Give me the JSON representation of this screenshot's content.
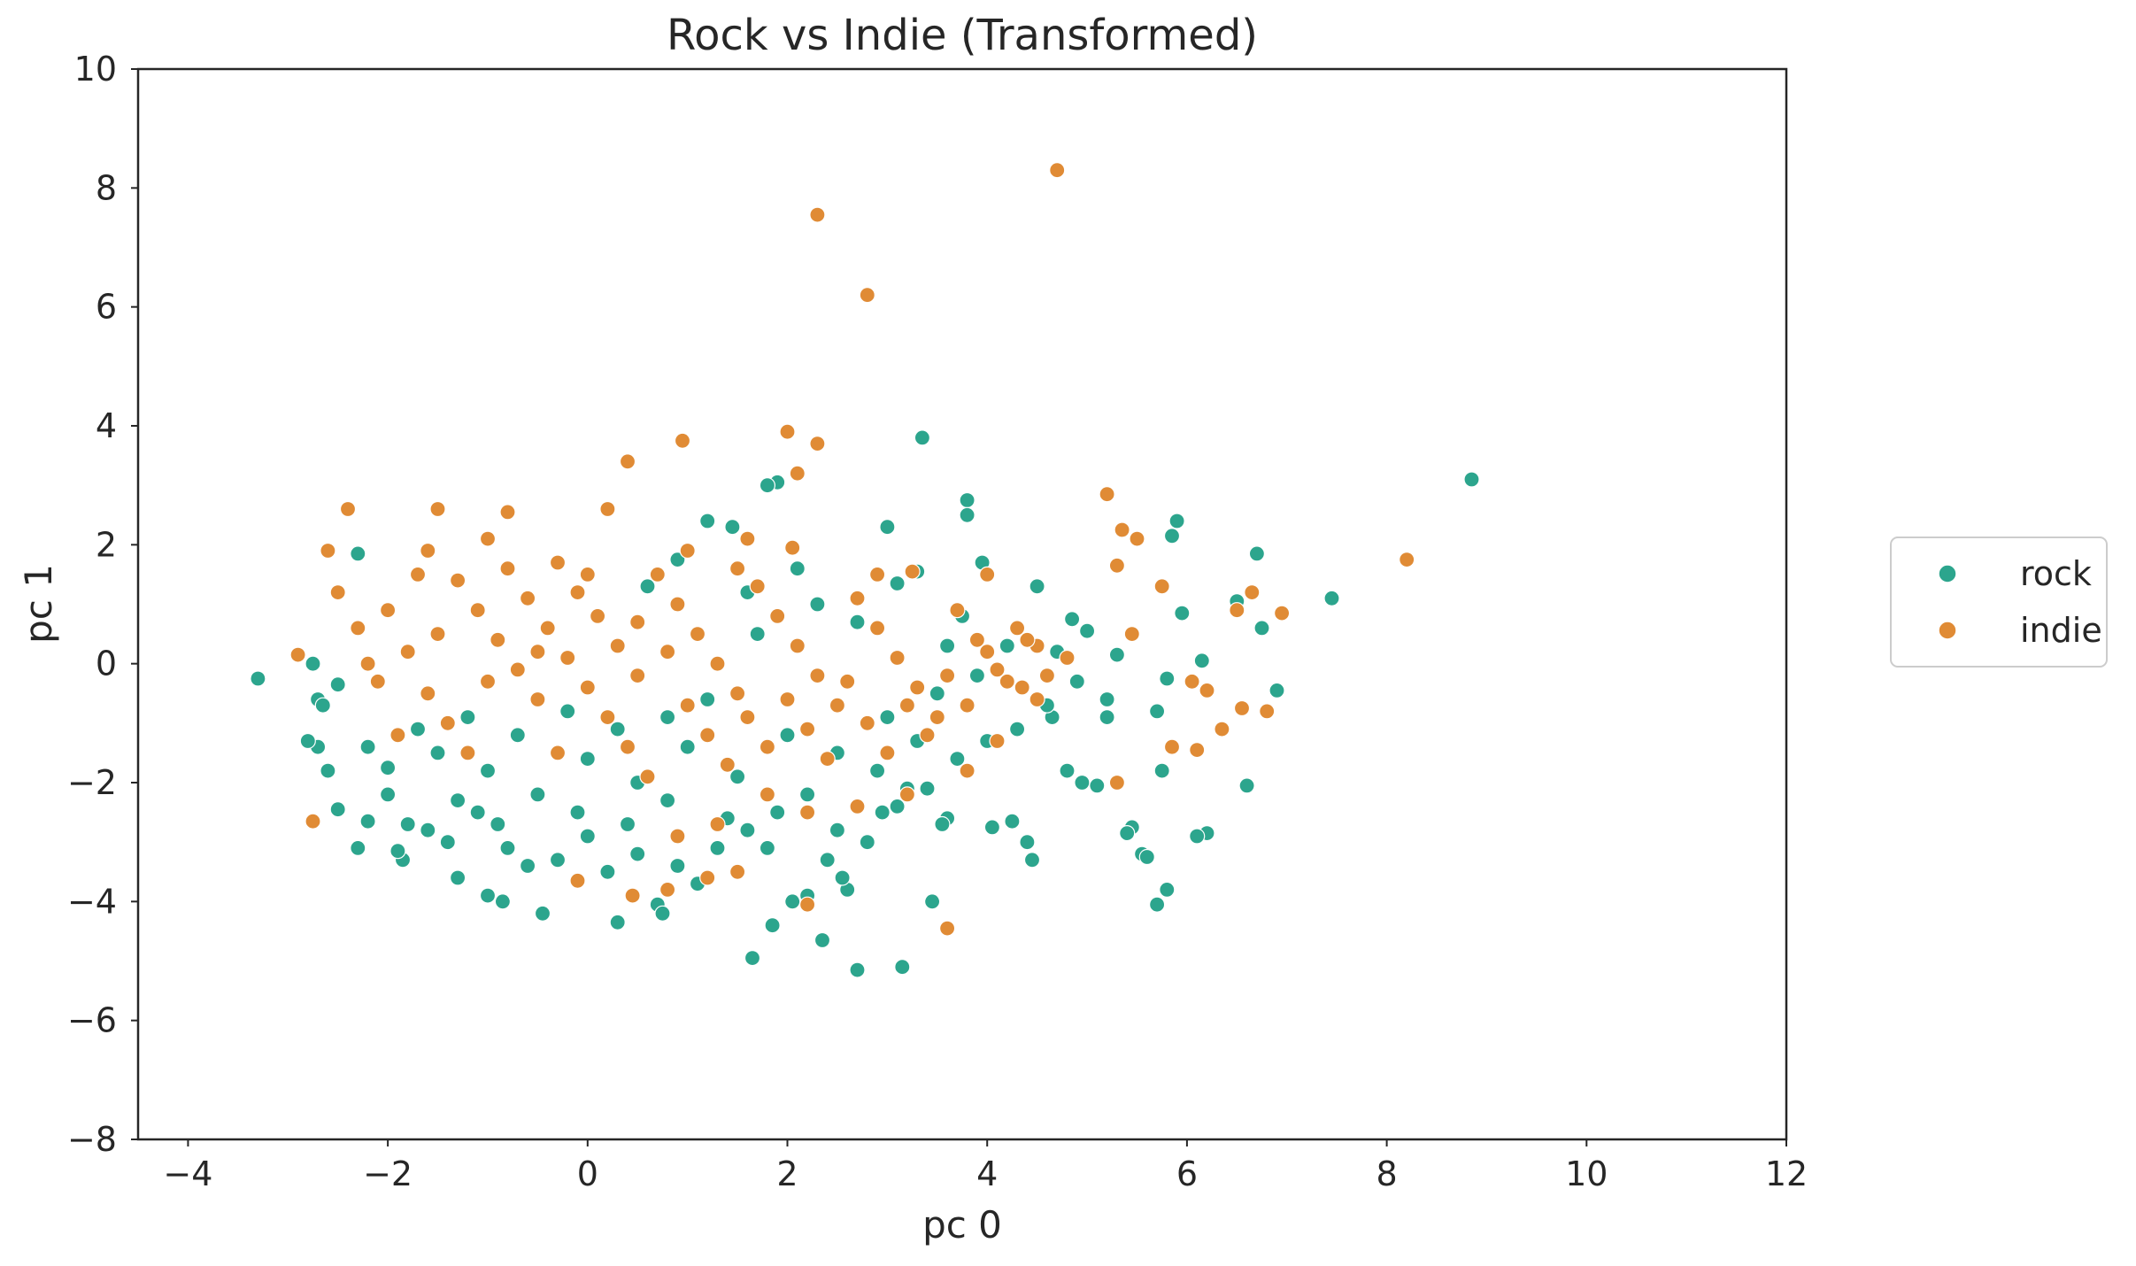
{
  "chart_data": {
    "type": "scatter",
    "title": "Rock vs Indie (Transformed)",
    "xlabel": "pc 0",
    "ylabel": "pc 1",
    "xlim": [
      -4.5,
      12
    ],
    "ylim": [
      -8,
      10
    ],
    "xticks": [
      -4,
      -2,
      0,
      2,
      4,
      6,
      8,
      10,
      12
    ],
    "yticks": [
      -8,
      -6,
      -4,
      -2,
      0,
      2,
      4,
      6,
      8,
      10
    ],
    "xtick_labels": [
      "−4",
      "−2",
      "0",
      "2",
      "4",
      "6",
      "8",
      "10",
      "12"
    ],
    "ytick_labels": [
      "−8",
      "−6",
      "−4",
      "−2",
      "0",
      "2",
      "4",
      "6",
      "8",
      "10"
    ],
    "grid": false,
    "legend": {
      "placement": "right",
      "entries": [
        "rock",
        "indie"
      ]
    },
    "series": [
      {
        "name": "rock",
        "color": "#2ca58d",
        "points": [
          [
            -3.3,
            -0.25
          ],
          [
            8.85,
            3.1
          ],
          [
            7.45,
            1.1
          ],
          [
            6.9,
            -0.45
          ],
          [
            6.75,
            0.6
          ],
          [
            6.7,
            1.85
          ],
          [
            6.5,
            1.05
          ],
          [
            6.6,
            -2.05
          ],
          [
            6.2,
            -2.85
          ],
          [
            6.1,
            -2.9
          ],
          [
            6.15,
            0.05
          ],
          [
            5.95,
            0.85
          ],
          [
            5.9,
            2.4
          ],
          [
            5.85,
            2.15
          ],
          [
            5.8,
            -0.25
          ],
          [
            5.7,
            -0.8
          ],
          [
            5.75,
            -1.8
          ],
          [
            5.7,
            -4.05
          ],
          [
            5.8,
            -3.8
          ],
          [
            5.55,
            -3.2
          ],
          [
            5.6,
            -3.25
          ],
          [
            5.45,
            -2.75
          ],
          [
            5.4,
            -2.85
          ],
          [
            5.2,
            -0.6
          ],
          [
            5.3,
            0.15
          ],
          [
            5.0,
            0.55
          ],
          [
            5.1,
            -2.05
          ],
          [
            4.95,
            -2.0
          ],
          [
            4.8,
            -1.8
          ],
          [
            4.85,
            0.75
          ],
          [
            4.65,
            -0.9
          ],
          [
            4.5,
            1.3
          ],
          [
            4.45,
            -3.3
          ],
          [
            4.4,
            -3.0
          ],
          [
            4.25,
            -2.65
          ],
          [
            4.05,
            -2.75
          ],
          [
            3.95,
            1.7
          ],
          [
            3.8,
            2.75
          ],
          [
            3.8,
            2.5
          ],
          [
            3.75,
            0.8
          ],
          [
            3.6,
            -2.6
          ],
          [
            3.55,
            -2.7
          ],
          [
            3.45,
            -4.0
          ],
          [
            3.35,
            3.8
          ],
          [
            3.3,
            1.55
          ],
          [
            3.1,
            1.35
          ],
          [
            3.0,
            2.3
          ],
          [
            3.2,
            -2.1
          ],
          [
            2.95,
            -2.5
          ],
          [
            3.15,
            -5.1
          ],
          [
            2.7,
            -5.15
          ],
          [
            2.6,
            -3.8
          ],
          [
            2.55,
            -3.6
          ],
          [
            2.35,
            -4.65
          ],
          [
            2.2,
            -3.9
          ],
          [
            2.05,
            -4.0
          ],
          [
            1.85,
            -4.4
          ],
          [
            1.65,
            -4.95
          ],
          [
            1.9,
            3.05
          ],
          [
            1.8,
            3.0
          ],
          [
            1.45,
            2.3
          ],
          [
            1.2,
            2.4
          ],
          [
            0.9,
            1.75
          ],
          [
            0.6,
            1.3
          ],
          [
            1.1,
            -3.7
          ],
          [
            0.7,
            -4.05
          ],
          [
            0.75,
            -4.2
          ],
          [
            0.3,
            -4.35
          ],
          [
            -0.45,
            -4.2
          ],
          [
            -0.85,
            -4.0
          ],
          [
            -1.0,
            -3.9
          ],
          [
            -1.3,
            -3.6
          ],
          [
            -1.85,
            -3.3
          ],
          [
            -1.9,
            -3.15
          ],
          [
            -2.3,
            -3.1
          ],
          [
            -2.2,
            -2.65
          ],
          [
            -2.5,
            -2.45
          ],
          [
            -2.6,
            -1.8
          ],
          [
            -2.7,
            -1.4
          ],
          [
            -2.8,
            -1.3
          ],
          [
            -2.7,
            -0.6
          ],
          [
            -2.65,
            -0.7
          ],
          [
            -2.75,
            0.0
          ],
          [
            -2.5,
            -0.35
          ],
          [
            -2.3,
            1.85
          ],
          [
            -2.0,
            -1.75
          ],
          [
            -1.6,
            -2.8
          ],
          [
            -1.4,
            -3.0
          ],
          [
            -1.1,
            -2.5
          ],
          [
            -0.8,
            -3.1
          ],
          [
            -0.6,
            -3.4
          ],
          [
            -0.3,
            -3.3
          ],
          [
            0.0,
            -2.9
          ],
          [
            0.2,
            -3.5
          ],
          [
            0.5,
            -3.2
          ],
          [
            0.9,
            -3.4
          ],
          [
            1.3,
            -3.1
          ],
          [
            1.6,
            -2.8
          ],
          [
            1.9,
            -2.5
          ],
          [
            2.2,
            -2.2
          ],
          [
            2.5,
            -2.8
          ],
          [
            2.8,
            -3.0
          ],
          [
            3.1,
            -2.4
          ],
          [
            3.4,
            -2.1
          ],
          [
            3.7,
            -1.6
          ],
          [
            4.0,
            -1.3
          ],
          [
            4.3,
            -1.1
          ],
          [
            4.6,
            -0.7
          ],
          [
            4.9,
            -0.3
          ],
          [
            5.2,
            -0.9
          ],
          [
            -1.5,
            -1.5
          ],
          [
            -1.0,
            -1.8
          ],
          [
            -0.5,
            -2.2
          ],
          [
            0.0,
            -1.6
          ],
          [
            0.5,
            -2.0
          ],
          [
            1.0,
            -1.4
          ],
          [
            1.5,
            -1.9
          ],
          [
            2.0,
            -1.2
          ],
          [
            2.5,
            -1.5
          ],
          [
            3.0,
            -0.9
          ],
          [
            3.5,
            -0.5
          ],
          [
            3.9,
            -0.2
          ],
          [
            4.2,
            0.3
          ],
          [
            2.7,
            0.7
          ],
          [
            2.3,
            1.0
          ],
          [
            1.7,
            0.5
          ],
          [
            1.2,
            -0.6
          ],
          [
            0.8,
            -0.9
          ],
          [
            0.3,
            -1.1
          ],
          [
            -0.2,
            -0.8
          ],
          [
            -0.7,
            -1.2
          ],
          [
            -1.2,
            -0.9
          ],
          [
            -1.7,
            -1.1
          ],
          [
            -2.2,
            -1.4
          ],
          [
            -2.0,
            -2.2
          ],
          [
            -1.3,
            -2.3
          ],
          [
            -0.9,
            -2.7
          ],
          [
            -0.1,
            -2.5
          ],
          [
            0.4,
            -2.7
          ],
          [
            0.8,
            -2.3
          ],
          [
            1.4,
            -2.6
          ],
          [
            1.8,
            -3.1
          ],
          [
            2.4,
            -3.3
          ],
          [
            2.9,
            -1.8
          ],
          [
            3.3,
            -1.3
          ],
          [
            2.1,
            1.6
          ],
          [
            1.6,
            1.2
          ],
          [
            3.6,
            0.3
          ],
          [
            4.7,
            0.2
          ],
          [
            -1.8,
            -2.7
          ]
        ]
      },
      {
        "name": "indie",
        "color": "#e08b35",
        "points": [
          [
            4.7,
            8.3
          ],
          [
            2.3,
            7.55
          ],
          [
            2.8,
            6.2
          ],
          [
            8.2,
            1.75
          ],
          [
            2.0,
            3.9
          ],
          [
            2.3,
            3.7
          ],
          [
            0.95,
            3.75
          ],
          [
            0.4,
            3.4
          ],
          [
            2.1,
            3.2
          ],
          [
            5.2,
            2.85
          ],
          [
            5.35,
            2.25
          ],
          [
            5.5,
            2.1
          ],
          [
            5.75,
            1.3
          ],
          [
            5.3,
            1.65
          ],
          [
            5.45,
            0.5
          ],
          [
            6.05,
            -0.3
          ],
          [
            6.2,
            -0.45
          ],
          [
            6.5,
            0.9
          ],
          [
            6.65,
            1.2
          ],
          [
            6.95,
            0.85
          ],
          [
            6.8,
            -0.8
          ],
          [
            6.55,
            -0.75
          ],
          [
            6.35,
            -1.1
          ],
          [
            6.1,
            -1.45
          ],
          [
            5.85,
            -1.4
          ],
          [
            5.3,
            -2.0
          ],
          [
            3.6,
            -4.45
          ],
          [
            2.2,
            -4.05
          ],
          [
            1.5,
            -3.5
          ],
          [
            1.2,
            -3.6
          ],
          [
            0.8,
            -3.8
          ],
          [
            0.45,
            -3.9
          ],
          [
            -0.1,
            -3.65
          ],
          [
            -2.75,
            -2.65
          ],
          [
            -2.9,
            0.15
          ],
          [
            -2.4,
            2.6
          ],
          [
            -2.6,
            1.9
          ],
          [
            -1.5,
            2.6
          ],
          [
            -0.8,
            2.55
          ],
          [
            0.2,
            2.6
          ],
          [
            1.6,
            2.1
          ],
          [
            2.05,
            1.95
          ],
          [
            2.9,
            1.5
          ],
          [
            3.25,
            1.55
          ],
          [
            4.0,
            1.5
          ],
          [
            4.5,
            0.3
          ],
          [
            4.35,
            -0.4
          ],
          [
            4.1,
            -1.3
          ],
          [
            3.8,
            -1.8
          ],
          [
            3.2,
            -2.2
          ],
          [
            2.7,
            -2.4
          ],
          [
            2.2,
            -2.5
          ],
          [
            1.8,
            -2.2
          ],
          [
            1.3,
            -2.7
          ],
          [
            0.9,
            -2.9
          ],
          [
            -2.5,
            1.2
          ],
          [
            -2.3,
            0.6
          ],
          [
            -2.1,
            -0.3
          ],
          [
            -1.9,
            -1.2
          ],
          [
            -1.6,
            1.9
          ],
          [
            -1.3,
            1.4
          ],
          [
            -1.1,
            0.9
          ],
          [
            -0.9,
            0.4
          ],
          [
            -0.7,
            -0.1
          ],
          [
            -0.5,
            -0.6
          ],
          [
            -0.3,
            1.7
          ],
          [
            -0.1,
            1.2
          ],
          [
            0.1,
            0.8
          ],
          [
            0.3,
            0.3
          ],
          [
            0.5,
            -0.2
          ],
          [
            0.7,
            1.5
          ],
          [
            0.9,
            1.0
          ],
          [
            1.1,
            0.5
          ],
          [
            1.3,
            0.0
          ],
          [
            1.5,
            -0.5
          ],
          [
            1.7,
            1.3
          ],
          [
            1.9,
            0.8
          ],
          [
            2.1,
            0.3
          ],
          [
            2.3,
            -0.2
          ],
          [
            2.5,
            -0.7
          ],
          [
            2.7,
            1.1
          ],
          [
            2.9,
            0.6
          ],
          [
            3.1,
            0.1
          ],
          [
            3.3,
            -0.4
          ],
          [
            3.5,
            -0.9
          ],
          [
            3.7,
            0.9
          ],
          [
            3.9,
            0.4
          ],
          [
            4.1,
            -0.1
          ],
          [
            4.3,
            0.6
          ],
          [
            4.5,
            -0.6
          ],
          [
            -2.0,
            0.9
          ],
          [
            -1.8,
            0.2
          ],
          [
            -1.6,
            -0.5
          ],
          [
            -1.4,
            -1.0
          ],
          [
            -1.2,
            -1.5
          ],
          [
            -1.0,
            2.1
          ],
          [
            -0.8,
            1.6
          ],
          [
            -0.6,
            1.1
          ],
          [
            -0.4,
            0.6
          ],
          [
            -0.2,
            0.1
          ],
          [
            0.0,
            -0.4
          ],
          [
            0.2,
            -0.9
          ],
          [
            0.4,
            -1.4
          ],
          [
            0.6,
            -1.9
          ],
          [
            0.8,
            0.2
          ],
          [
            1.0,
            -0.7
          ],
          [
            1.2,
            -1.2
          ],
          [
            1.4,
            -1.7
          ],
          [
            1.6,
            -0.9
          ],
          [
            1.8,
            -1.4
          ],
          [
            2.0,
            -0.6
          ],
          [
            2.2,
            -1.1
          ],
          [
            2.4,
            -1.6
          ],
          [
            2.6,
            -0.3
          ],
          [
            2.8,
            -1.0
          ],
          [
            3.0,
            -1.5
          ],
          [
            3.2,
            -0.7
          ],
          [
            3.4,
            -1.2
          ],
          [
            3.6,
            -0.2
          ],
          [
            3.8,
            -0.7
          ],
          [
            4.0,
            0.2
          ],
          [
            4.2,
            -0.3
          ],
          [
            4.4,
            0.4
          ],
          [
            4.6,
            -0.2
          ],
          [
            4.8,
            0.1
          ],
          [
            -1.5,
            0.5
          ],
          [
            -1.0,
            -0.3
          ],
          [
            -0.5,
            0.2
          ],
          [
            0.0,
            1.5
          ],
          [
            0.5,
            0.7
          ],
          [
            1.0,
            1.9
          ],
          [
            1.5,
            1.6
          ],
          [
            -1.7,
            1.5
          ],
          [
            -2.2,
            0.0
          ],
          [
            -0.3,
            -1.5
          ]
        ]
      }
    ]
  }
}
